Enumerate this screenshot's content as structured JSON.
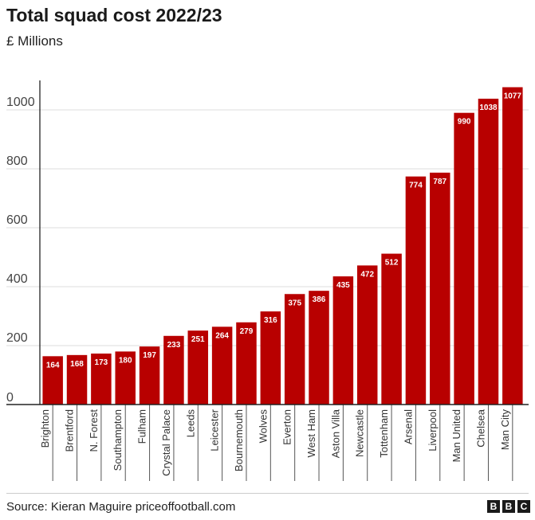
{
  "header": {
    "title": "Total squad cost 2022/23",
    "subtitle": "£ Millions"
  },
  "footer": {
    "source": "Source: Kieran Maguire priceoffootball.com",
    "logo": [
      "B",
      "B",
      "C"
    ]
  },
  "colors": {
    "bar": "#b80000",
    "grid": "#dddddd",
    "axis": "#222222",
    "bar_label": "#ffffff"
  },
  "chart_data": {
    "type": "bar",
    "title": "Total squad cost 2022/23",
    "subtitle": "£ Millions",
    "categories": [
      "Brighton",
      "Brentford",
      "N. Forest",
      "Southampton",
      "Fulham",
      "Crystal Palace",
      "Leeds",
      "Leicester",
      "Bournemouth",
      "Wolves",
      "Everton",
      "West Ham",
      "Aston Villa",
      "Newcastle",
      "Tottenham",
      "Arsenal",
      "Liverpool",
      "Man United",
      "Chelsea",
      "Man City"
    ],
    "values": [
      164,
      168,
      173,
      180,
      197,
      233,
      251,
      264,
      279,
      316,
      375,
      386,
      435,
      472,
      512,
      774,
      787,
      990,
      1038,
      1077
    ],
    "yticks": [
      0,
      200,
      400,
      600,
      800,
      1000
    ],
    "ylim": [
      0,
      1100
    ],
    "grid": true,
    "data_labels": true,
    "legend": "none"
  }
}
